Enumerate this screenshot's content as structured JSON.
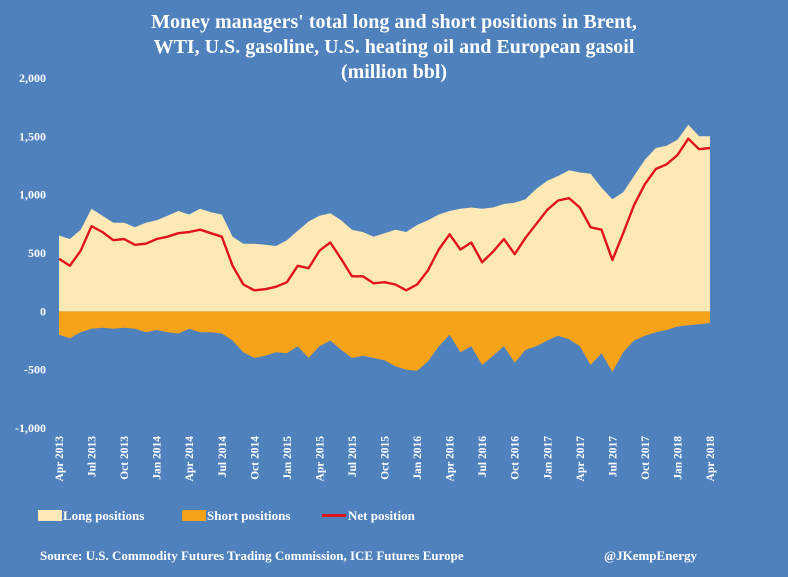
{
  "title_lines": [
    "Money managers' total long and short positions in Brent,",
    "WTI, U.S. gasoline, U.S. heating oil and European gasoil",
    "(million bbl)"
  ],
  "source": "Source: U.S. Commodity Futures Trading Commission, ICE Futures Europe",
  "credit": "@JKempEnergy",
  "colors": {
    "background": "#4f81bd",
    "long": "#fde9b6",
    "short": "#f7a31a",
    "net": "#e0141a"
  },
  "legend": {
    "long": "Long positions",
    "short": "Short positions",
    "net": "Net position"
  },
  "chart_data": {
    "type": "area",
    "title": "Money managers' total long and short positions in Brent, WTI, U.S. gasoline, U.S. heating oil and European gasoil (million bbl)",
    "xlabel": "",
    "ylabel": "",
    "ylim": [
      -1000,
      2000
    ],
    "yticks": [
      2000,
      1500,
      1000,
      500,
      0,
      -500,
      -1000
    ],
    "ytick_labels": [
      "2,000",
      "1,500",
      "1,000",
      "500",
      "0",
      "-500",
      "-1,000"
    ],
    "xlim": [
      "2013-04",
      "2018-04"
    ],
    "xtick_labels": [
      "Apr 2013",
      "Jul 2013",
      "Oct 2013",
      "Jan 2014",
      "Apr 2014",
      "Jul 2014",
      "Oct 2014",
      "Jan 2015",
      "Apr 2015",
      "Jul 2015",
      "Oct 2015",
      "Jan 2016",
      "Apr 2016",
      "Jul 2016",
      "Oct 2016",
      "Jan 2017",
      "Apr 2017",
      "Jul 2017",
      "Oct 2017",
      "Jan 2018",
      "Apr 2018"
    ],
    "x": [
      "2013-04",
      "2013-05",
      "2013-06",
      "2013-07",
      "2013-08",
      "2013-09",
      "2013-10",
      "2013-11",
      "2013-12",
      "2014-01",
      "2014-02",
      "2014-03",
      "2014-04",
      "2014-05",
      "2014-06",
      "2014-07",
      "2014-08",
      "2014-09",
      "2014-10",
      "2014-11",
      "2014-12",
      "2015-01",
      "2015-02",
      "2015-03",
      "2015-04",
      "2015-05",
      "2015-06",
      "2015-07",
      "2015-08",
      "2015-09",
      "2015-10",
      "2015-11",
      "2015-12",
      "2016-01",
      "2016-02",
      "2016-03",
      "2016-04",
      "2016-05",
      "2016-06",
      "2016-07",
      "2016-08",
      "2016-09",
      "2016-10",
      "2016-11",
      "2016-12",
      "2017-01",
      "2017-02",
      "2017-03",
      "2017-04",
      "2017-05",
      "2017-06",
      "2017-07",
      "2017-08",
      "2017-09",
      "2017-10",
      "2017-11",
      "2017-12",
      "2018-01",
      "2018-02",
      "2018-03",
      "2018-04"
    ],
    "series": [
      {
        "name": "Long positions",
        "values": [
          650,
          620,
          700,
          880,
          820,
          760,
          760,
          720,
          760,
          780,
          820,
          860,
          830,
          880,
          850,
          830,
          640,
          580,
          580,
          570,
          560,
          610,
          690,
          770,
          820,
          840,
          780,
          700,
          680,
          640,
          670,
          700,
          680,
          740,
          780,
          830,
          860,
          880,
          890,
          880,
          890,
          920,
          930,
          960,
          1050,
          1120,
          1160,
          1210,
          1190,
          1180,
          1060,
          960,
          1020,
          1160,
          1300,
          1400,
          1420,
          1470,
          1600,
          1500,
          1500
        ]
      },
      {
        "name": "Short positions",
        "values": [
          -200,
          -230,
          -180,
          -150,
          -140,
          -150,
          -140,
          -150,
          -180,
          -160,
          -180,
          -190,
          -150,
          -180,
          -180,
          -190,
          -250,
          -350,
          -400,
          -380,
          -350,
          -360,
          -300,
          -400,
          -300,
          -250,
          -330,
          -400,
          -380,
          -400,
          -420,
          -470,
          -500,
          -510,
          -430,
          -300,
          -200,
          -350,
          -300,
          -460,
          -380,
          -300,
          -440,
          -330,
          -300,
          -250,
          -210,
          -240,
          -300,
          -460,
          -360,
          -520,
          -350,
          -250,
          -210,
          -180,
          -160,
          -130,
          -120,
          -110,
          -100
        ]
      },
      {
        "name": "Net position",
        "values": [
          450,
          390,
          520,
          730,
          680,
          610,
          620,
          570,
          580,
          620,
          640,
          670,
          680,
          700,
          670,
          640,
          390,
          230,
          180,
          190,
          210,
          250,
          390,
          370,
          520,
          590,
          450,
          300,
          300,
          240,
          250,
          230,
          180,
          230,
          350,
          530,
          660,
          530,
          590,
          420,
          510,
          620,
          490,
          630,
          750,
          870,
          950,
          970,
          890,
          720,
          700,
          440,
          670,
          910,
          1090,
          1220,
          1260,
          1340,
          1480,
          1390,
          1400
        ]
      }
    ]
  }
}
